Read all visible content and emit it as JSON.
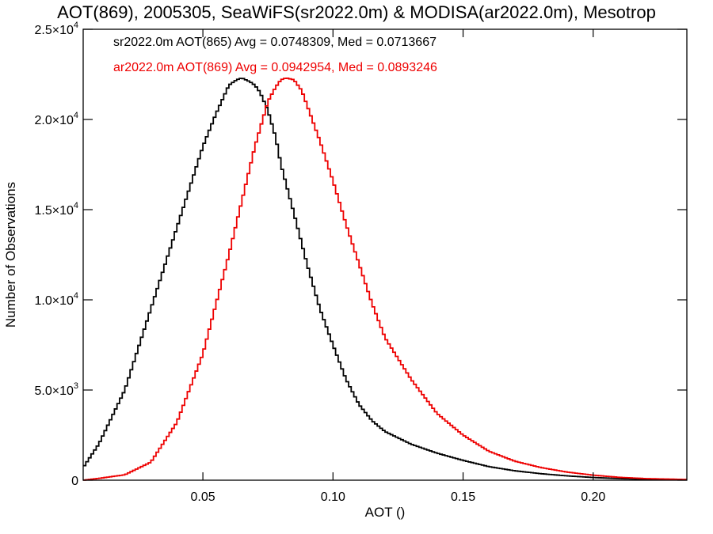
{
  "chart_data": {
    "type": "line",
    "title": "AOT(869), 2005305, SeaWiFS(sr2022.0m) & MODISA(ar2022.0m), Mesotrop",
    "xlabel": "AOT ()",
    "ylabel": "Number of Observations",
    "xlim": [
      0.004,
      0.236
    ],
    "ylim": [
      0,
      25000
    ],
    "x_ticks": [
      {
        "value": 0.05,
        "label": "0.05"
      },
      {
        "value": 0.1,
        "label": "0.10"
      },
      {
        "value": 0.15,
        "label": "0.15"
      },
      {
        "value": 0.2,
        "label": "0.20"
      }
    ],
    "y_ticks": [
      {
        "value": 0,
        "label": "0",
        "exp": ""
      },
      {
        "value": 5000,
        "label": "5.0×10",
        "exp": "3"
      },
      {
        "value": 10000,
        "label": "1.0×10",
        "exp": "4"
      },
      {
        "value": 15000,
        "label": "1.5×10",
        "exp": "4"
      },
      {
        "value": 20000,
        "label": "2.0×10",
        "exp": "4"
      },
      {
        "value": 25000,
        "label": "2.5×10",
        "exp": "4"
      }
    ],
    "grid": false,
    "legend_position": "top-left",
    "series": [
      {
        "name": "sr2022.0m AOT(865) Avg = 0.0748309, Med = 0.0713667",
        "color": "#000000",
        "x": [
          0.004,
          0.01,
          0.02,
          0.03,
          0.04,
          0.05,
          0.055,
          0.06,
          0.063,
          0.065,
          0.068,
          0.07,
          0.072,
          0.075,
          0.078,
          0.08,
          0.085,
          0.09,
          0.095,
          0.1,
          0.105,
          0.11,
          0.115,
          0.12,
          0.13,
          0.14,
          0.15,
          0.16,
          0.17,
          0.18,
          0.19,
          0.2,
          0.21,
          0.22,
          0.236
        ],
        "y": [
          700,
          2000,
          5000,
          9500,
          14000,
          18500,
          20300,
          21900,
          22200,
          22300,
          22100,
          21900,
          21500,
          20500,
          19000,
          17500,
          14800,
          12000,
          9500,
          7500,
          5600,
          4200,
          3300,
          2700,
          2000,
          1500,
          1100,
          750,
          520,
          360,
          240,
          150,
          90,
          50,
          20
        ]
      },
      {
        "name": "ar2022.0m AOT(869) Avg = 0.0942954, Med = 0.0893246",
        "color": "#ee0000",
        "x": [
          0.004,
          0.01,
          0.02,
          0.03,
          0.04,
          0.05,
          0.06,
          0.065,
          0.07,
          0.075,
          0.078,
          0.08,
          0.082,
          0.085,
          0.088,
          0.09,
          0.095,
          0.1,
          0.105,
          0.11,
          0.115,
          0.12,
          0.13,
          0.14,
          0.15,
          0.16,
          0.17,
          0.18,
          0.19,
          0.2,
          0.21,
          0.22,
          0.236
        ],
        "y": [
          0,
          100,
          300,
          1000,
          3200,
          7000,
          12500,
          15500,
          18500,
          21000,
          21800,
          22200,
          22300,
          22200,
          21600,
          20800,
          18800,
          16600,
          14200,
          12000,
          9800,
          7900,
          5600,
          3700,
          2500,
          1600,
          1050,
          700,
          450,
          280,
          160,
          90,
          40
        ]
      }
    ]
  }
}
